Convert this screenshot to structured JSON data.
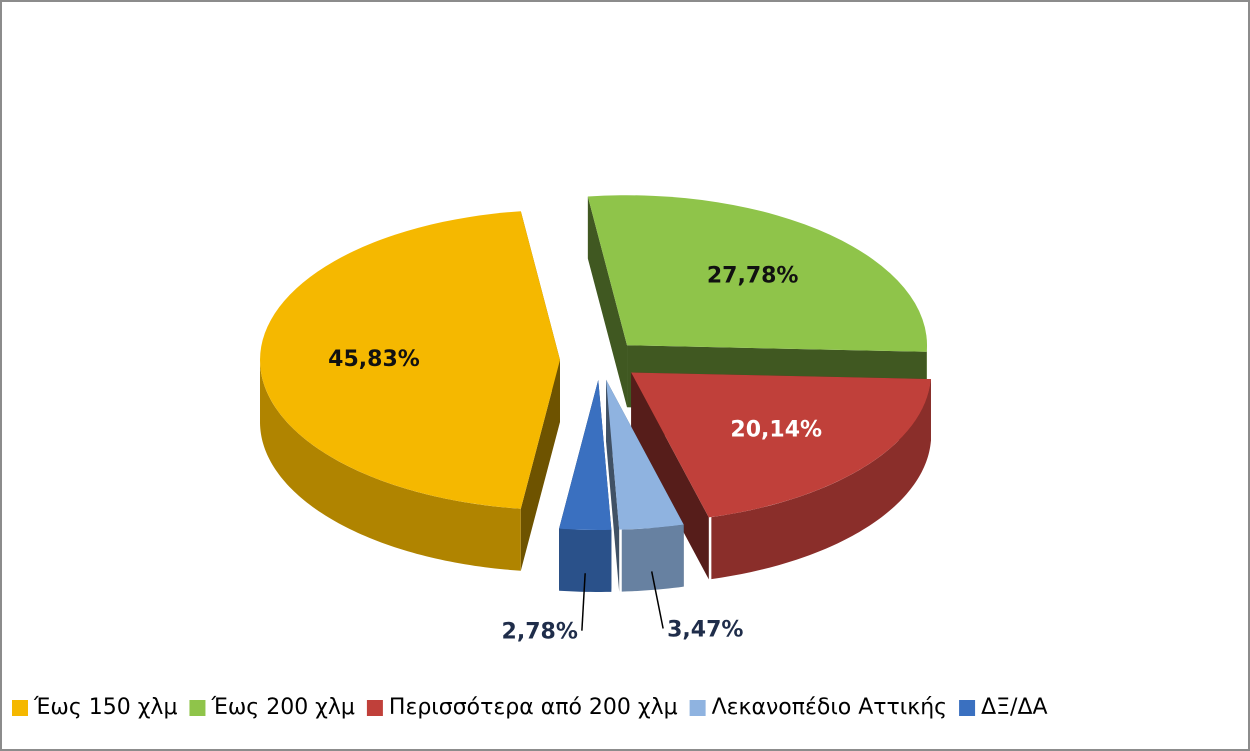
{
  "chart_data": {
    "type": "pie",
    "categories": [
      "Έως 150 χλμ",
      "Έως 200 χλμ",
      "Περισσότερα από 200 χλμ",
      "Λεκανοπέδιο Αττικής",
      "ΔΞ/ΔΑ"
    ],
    "values": [
      45.83,
      27.78,
      20.14,
      3.47,
      2.78
    ],
    "value_labels": [
      "45,83%",
      "27,78%",
      "20,14%",
      "3,47%",
      "2,78%"
    ],
    "colors": [
      "#f5b800",
      "#8fc44a",
      "#c0403a",
      "#8fb3e0",
      "#3a70c0"
    ],
    "legend": "bottom"
  }
}
